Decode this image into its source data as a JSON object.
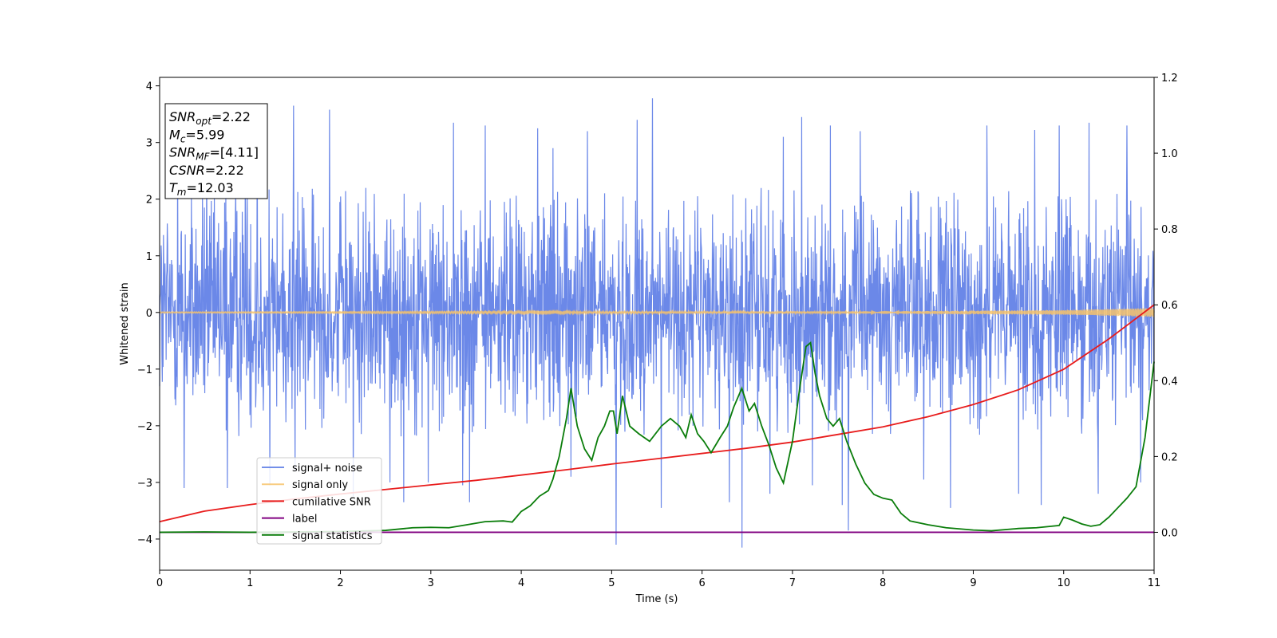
{
  "chart_data": {
    "type": "line",
    "title": "",
    "xlabel": "Time (s)",
    "ylabel": "Whitened strain",
    "xlim": [
      0,
      11
    ],
    "ylim": [
      -4.55,
      4.15
    ],
    "y2lim": [
      -0.1,
      1.2
    ],
    "xticks": [
      0,
      1,
      2,
      3,
      4,
      5,
      6,
      7,
      8,
      9,
      10,
      11
    ],
    "xtick_labels": [
      "0",
      "1",
      "2",
      "3",
      "4",
      "5",
      "6",
      "7",
      "8",
      "9",
      "10",
      "11"
    ],
    "yticks": [
      4,
      3,
      2,
      1,
      0,
      -1,
      -2,
      -3,
      -4
    ],
    "ytick_labels": [
      "4",
      "3",
      "2",
      "1",
      "0",
      "−1",
      "−2",
      "−3",
      "−4"
    ],
    "y2ticks": [
      1.2,
      1.0,
      0.8,
      0.6,
      0.4,
      0.2,
      0.0
    ],
    "y2tick_labels": [
      "1.2",
      "1.0",
      "0.8",
      "0.6",
      "0.4",
      "0.2",
      "0.0"
    ],
    "grid": false,
    "legend_position": "lower-left",
    "series": [
      {
        "name": "signal+ noise",
        "axis": "left",
        "color": "#5b7be5",
        "style": "dense noise, approximately within ±2.2 with occasional spikes to ±3.8",
        "envelope": [
          -2.2,
          2.2
        ],
        "spikes": [
          [
            0.2,
            2.7
          ],
          [
            0.27,
            -3.1
          ],
          [
            0.52,
            2.9
          ],
          [
            0.75,
            -3.1
          ],
          [
            0.95,
            3.05
          ],
          [
            1.08,
            2.95
          ],
          [
            1.22,
            -3.05
          ],
          [
            1.48,
            3.65
          ],
          [
            1.5,
            -2.8
          ],
          [
            1.88,
            3.58
          ],
          [
            2.14,
            -3.25
          ],
          [
            2.55,
            -3.0
          ],
          [
            2.7,
            -3.35
          ],
          [
            2.97,
            -3.0
          ],
          [
            3.25,
            3.35
          ],
          [
            3.35,
            -3.05
          ],
          [
            3.43,
            -3.35
          ],
          [
            3.6,
            3.3
          ],
          [
            4.18,
            3.25
          ],
          [
            4.35,
            2.9
          ],
          [
            4.55,
            -2.9
          ],
          [
            4.73,
            3.2
          ],
          [
            5.05,
            -4.1
          ],
          [
            5.28,
            3.4
          ],
          [
            5.45,
            3.78
          ],
          [
            5.55,
            -3.45
          ],
          [
            6.3,
            -3.35
          ],
          [
            6.44,
            -4.15
          ],
          [
            6.75,
            -3.2
          ],
          [
            6.9,
            3.1
          ],
          [
            7.1,
            3.45
          ],
          [
            7.22,
            -3.05
          ],
          [
            7.42,
            3.3
          ],
          [
            7.55,
            -3.4
          ],
          [
            7.62,
            -3.85
          ],
          [
            7.75,
            3.2
          ],
          [
            8.45,
            -2.95
          ],
          [
            8.75,
            -3.45
          ],
          [
            9.15,
            3.3
          ],
          [
            9.5,
            -3.2
          ],
          [
            9.68,
            3.22
          ],
          [
            9.75,
            -3.4
          ],
          [
            9.95,
            3.3
          ],
          [
            10.28,
            3.35
          ],
          [
            10.38,
            -3.2
          ],
          [
            10.7,
            3.3
          ],
          [
            10.85,
            -3.0
          ]
        ]
      },
      {
        "name": "signal only",
        "axis": "left",
        "color": "#f7c36a",
        "style": "chirp with amplitude growing over time",
        "amplitude": [
          [
            0,
            0.01
          ],
          [
            5,
            0.015
          ],
          [
            8,
            0.02
          ],
          [
            10,
            0.04
          ],
          [
            10.5,
            0.06
          ],
          [
            11,
            0.08
          ]
        ]
      },
      {
        "name": "cumilative SNR",
        "axis": "right",
        "color": "#e81c1c",
        "x": [
          0,
          0.5,
          1,
          1.5,
          2,
          2.5,
          3,
          3.5,
          4,
          4.5,
          5,
          5.5,
          6,
          6.5,
          7,
          7.5,
          8,
          8.5,
          9,
          9.5,
          10,
          10.5,
          11
        ],
        "values": [
          0.028,
          0.056,
          0.073,
          0.088,
          0.101,
          0.113,
          0.125,
          0.137,
          0.151,
          0.165,
          0.18,
          0.194,
          0.208,
          0.222,
          0.238,
          0.258,
          0.278,
          0.305,
          0.337,
          0.376,
          0.43,
          0.51,
          0.6
        ]
      },
      {
        "name": "label",
        "axis": "right",
        "color": "#800080",
        "x": [
          0,
          11
        ],
        "values": [
          0,
          0
        ]
      },
      {
        "name": "signal statistics",
        "axis": "right",
        "color": "#0a7d0a",
        "x": [
          0,
          0.5,
          1,
          1.5,
          2,
          2.5,
          2.8,
          3,
          3.2,
          3.4,
          3.6,
          3.8,
          3.9,
          4,
          4.1,
          4.2,
          4.3,
          4.35,
          4.42,
          4.5,
          4.55,
          4.62,
          4.7,
          4.78,
          4.85,
          4.92,
          4.98,
          5.02,
          5.06,
          5.12,
          5.2,
          5.3,
          5.42,
          5.55,
          5.65,
          5.75,
          5.82,
          5.88,
          5.95,
          6.02,
          6.1,
          6.2,
          6.28,
          6.35,
          6.44,
          6.52,
          6.58,
          6.66,
          6.74,
          6.82,
          6.9,
          7.0,
          7.08,
          7.15,
          7.2,
          7.25,
          7.3,
          7.38,
          7.45,
          7.52,
          7.6,
          7.7,
          7.8,
          7.9,
          8.0,
          8.1,
          8.2,
          8.3,
          8.5,
          8.7,
          9.0,
          9.2,
          9.5,
          9.7,
          9.95,
          10.0,
          10.1,
          10.2,
          10.3,
          10.4,
          10.5,
          10.6,
          10.7,
          10.8,
          10.9,
          11.0
        ],
        "values": [
          0.0,
          0.001,
          0.0,
          0.001,
          0.002,
          0.005,
          0.012,
          0.013,
          0.012,
          0.02,
          0.028,
          0.03,
          0.027,
          0.055,
          0.07,
          0.095,
          0.11,
          0.14,
          0.2,
          0.3,
          0.38,
          0.28,
          0.22,
          0.19,
          0.25,
          0.28,
          0.32,
          0.32,
          0.26,
          0.36,
          0.28,
          0.26,
          0.24,
          0.28,
          0.3,
          0.28,
          0.25,
          0.31,
          0.26,
          0.24,
          0.21,
          0.25,
          0.28,
          0.33,
          0.38,
          0.32,
          0.34,
          0.28,
          0.23,
          0.17,
          0.13,
          0.24,
          0.38,
          0.49,
          0.5,
          0.42,
          0.36,
          0.3,
          0.28,
          0.3,
          0.24,
          0.18,
          0.13,
          0.1,
          0.09,
          0.085,
          0.05,
          0.03,
          0.02,
          0.012,
          0.006,
          0.004,
          0.01,
          0.012,
          0.018,
          0.04,
          0.032,
          0.022,
          0.016,
          0.02,
          0.04,
          0.065,
          0.09,
          0.12,
          0.25,
          0.45
        ]
      }
    ],
    "annotation": {
      "lines": [
        {
          "main": "SNR",
          "sub": "opt",
          "rest": "=2.22"
        },
        {
          "main": "M",
          "sub": "c",
          "rest": "=5.99"
        },
        {
          "main": "SNR",
          "sub": "MF",
          "rest": "=[4.11]"
        },
        {
          "main": "CSNR",
          "sub": "",
          "rest": "=2.22"
        },
        {
          "main": "T",
          "sub": "m",
          "rest": "=12.03"
        }
      ]
    }
  }
}
